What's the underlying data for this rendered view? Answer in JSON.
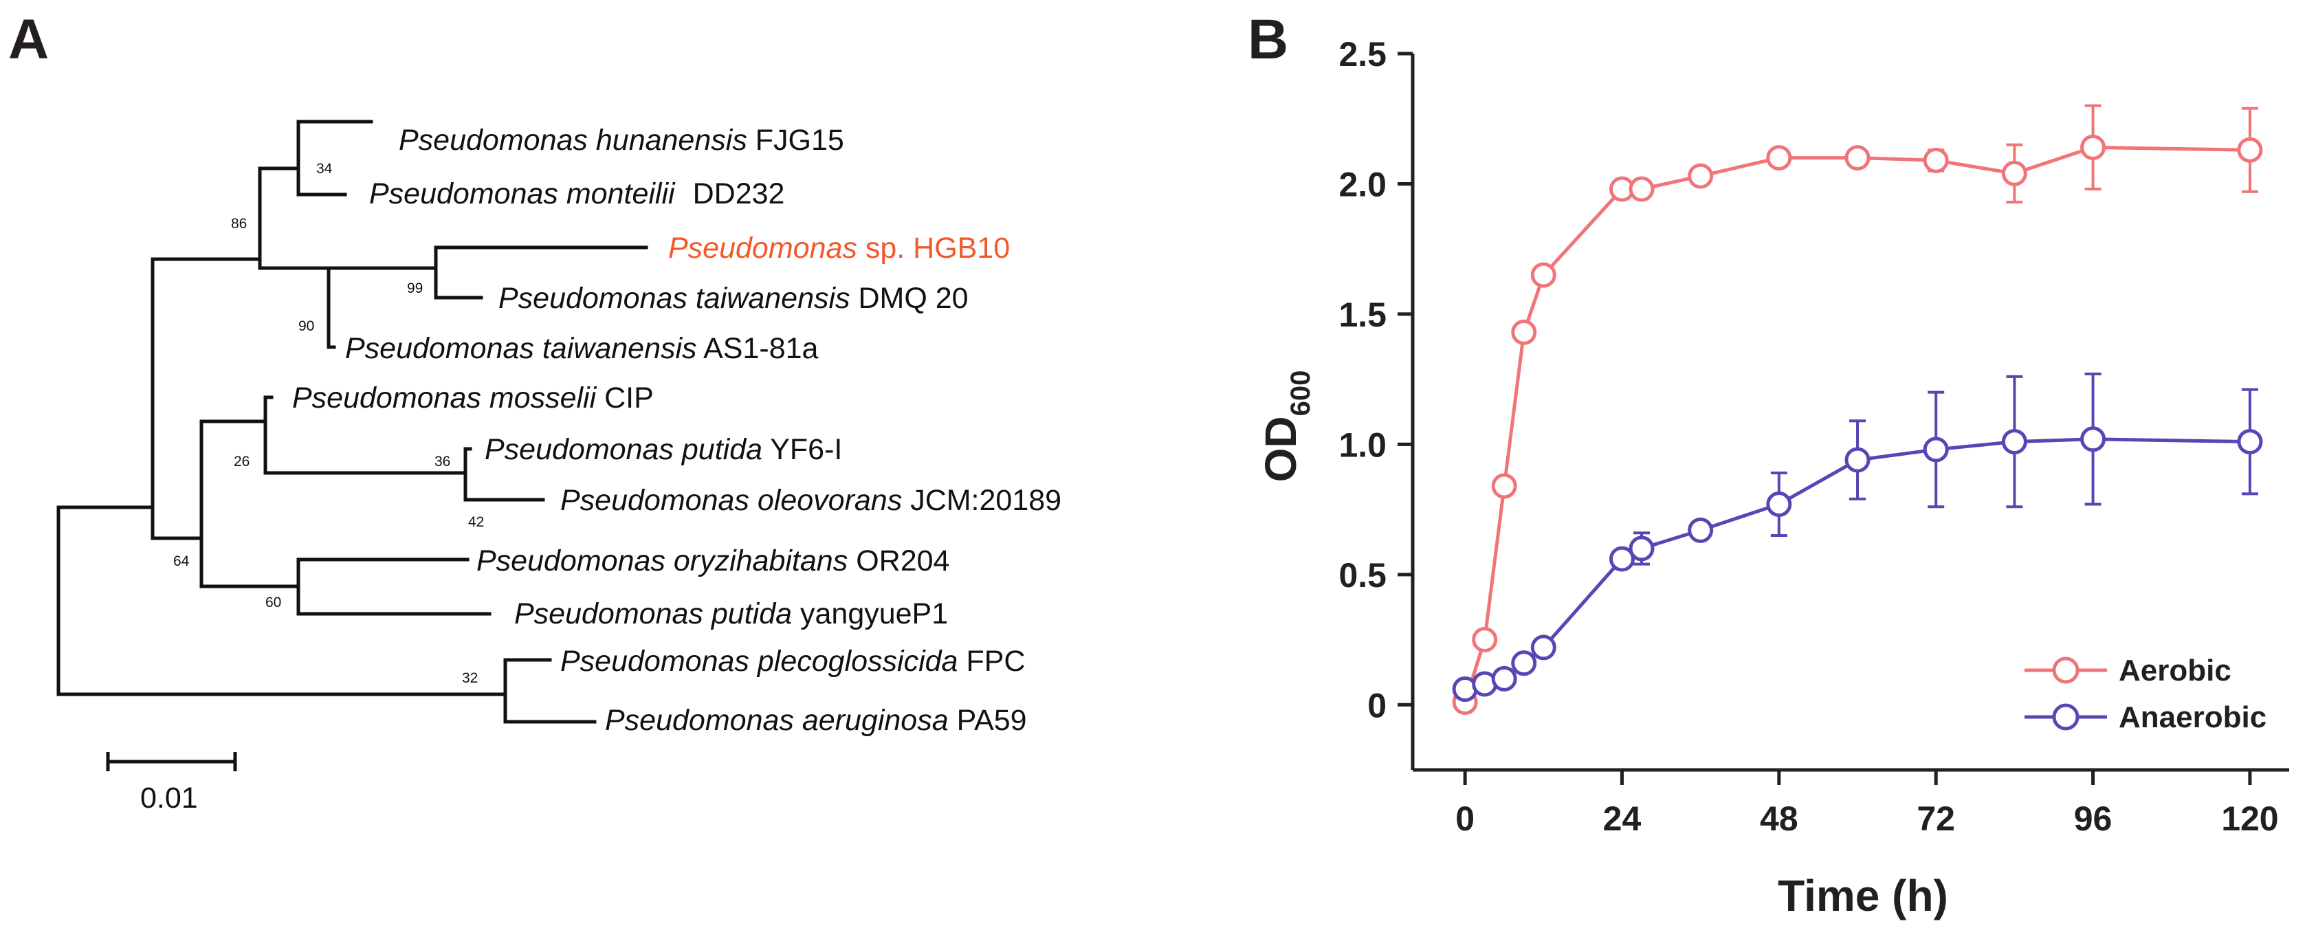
{
  "colors": {
    "aerobic": "#f07478",
    "anaerobic": "#5a45b5",
    "highlight": "#f1592a",
    "ink": "#231f20"
  },
  "panel_a": {
    "label": "A",
    "leaves": [
      {
        "genus": "Pseudomonas",
        "species": "hunanensis",
        "strain": "FJG15"
      },
      {
        "genus": "Pseudomonas",
        "species": "monteilii",
        "strain": "DD232"
      },
      {
        "genus": "Pseudomonas",
        "species": "",
        "strain": "sp. HGB10",
        "highlight": true
      },
      {
        "genus": "Pseudomonas",
        "species": "taiwanensis",
        "strain": "DMQ 20"
      },
      {
        "genus": "Pseudomonas",
        "species": "taiwanensis",
        "strain": "AS1-81a"
      },
      {
        "genus": "Pseudomonas",
        "species": "mosselii",
        "strain": "CIP"
      },
      {
        "genus": "Pseudomonas",
        "species": "putida",
        "strain": "YF6-I"
      },
      {
        "genus": "Pseudomonas",
        "species": "oleovorans",
        "strain": "JCM:20189"
      },
      {
        "genus": "Pseudomonas",
        "species": "oryzihabitans",
        "strain": "OR204"
      },
      {
        "genus": "Pseudomonas",
        "species": "putida",
        "strain": "yangyueP1"
      },
      {
        "genus": "Pseudomonas",
        "species": "plecoglossicida",
        "strain": "FPC"
      },
      {
        "genus": "Pseudomonas",
        "species": "aeruginosa",
        "strain": "PA59"
      }
    ],
    "bootstrap": [
      "34",
      "86",
      "99",
      "90",
      "26",
      "36",
      "42",
      "64",
      "60",
      "32"
    ],
    "scale_bar": "0.01"
  },
  "panel_b": {
    "label": "B",
    "chart_data": {
      "type": "line",
      "title": "",
      "xlabel": "Time (h)",
      "ylabel_main": "OD",
      "ylabel_sub": "600",
      "xlim": [
        -8,
        126
      ],
      "ylim": [
        -0.25,
        2.5
      ],
      "xticks": [
        0,
        24,
        48,
        72,
        96,
        120
      ],
      "yticks": [
        0,
        0.5,
        1.0,
        1.5,
        2.0,
        2.5
      ],
      "ytick_labels": [
        "0",
        "0.5",
        "1.0",
        "1.5",
        "2.0",
        "2.5"
      ],
      "legend_position": "bottom-right",
      "series": [
        {
          "name": "Aerobic",
          "x": [
            0,
            3,
            6,
            9,
            12,
            24,
            27,
            36,
            48,
            60,
            72,
            84,
            96,
            120
          ],
          "y": [
            0.01,
            0.25,
            0.84,
            1.43,
            1.65,
            1.98,
            1.98,
            2.03,
            2.1,
            2.1,
            2.09,
            2.04,
            2.14,
            2.13
          ],
          "err": [
            0.02,
            0.02,
            0.02,
            0.03,
            0.02,
            0.03,
            0.03,
            0.02,
            0.03,
            0.03,
            0.04,
            0.11,
            0.16,
            0.16
          ]
        },
        {
          "name": "Anaerobic",
          "x": [
            0,
            3,
            6,
            9,
            12,
            24,
            27,
            36,
            48,
            60,
            72,
            84,
            96,
            120
          ],
          "y": [
            0.06,
            0.08,
            0.1,
            0.16,
            0.22,
            0.56,
            0.6,
            0.67,
            0.77,
            0.94,
            0.98,
            1.01,
            1.02,
            1.01
          ],
          "err": [
            0.02,
            0.02,
            0.02,
            0.02,
            0.02,
            0.02,
            0.06,
            0.03,
            0.12,
            0.15,
            0.22,
            0.25,
            0.25,
            0.2
          ]
        }
      ]
    }
  }
}
